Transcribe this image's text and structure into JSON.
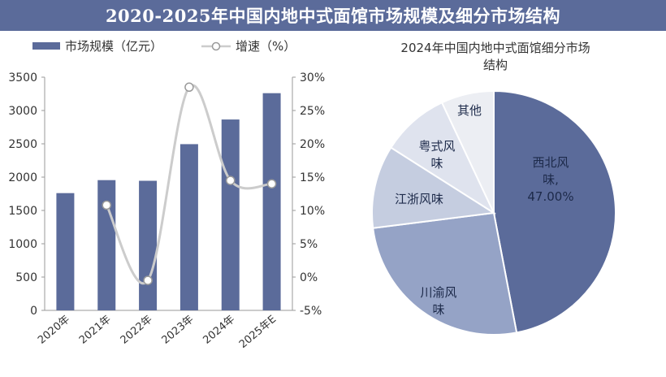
{
  "header": {
    "title": "2020-2025年中国内地中式面馆市场规模及细分市场结构"
  },
  "chart_data": [
    {
      "type": "bar",
      "title": "",
      "categories": [
        "2020年",
        "2021年",
        "2022年",
        "2023年",
        "2024年",
        "2025年E"
      ],
      "series": [
        {
          "name": "市场规模（亿元）",
          "type": "bar",
          "axis": "left",
          "values": [
            1760,
            1955,
            1945,
            2495,
            2865,
            3260
          ]
        },
        {
          "name": "增速（%）",
          "type": "line",
          "axis": "right",
          "values": [
            null,
            10.8,
            -0.5,
            28.5,
            14.5,
            14.0
          ]
        }
      ],
      "ylim": [
        0,
        3500
      ],
      "yticks": [
        "0",
        "500",
        "1000",
        "1500",
        "2000",
        "2500",
        "3000",
        "3500"
      ],
      "y2lim": [
        -5,
        30
      ],
      "y2ticks": [
        "-5%",
        "0%",
        "5%",
        "10%",
        "15%",
        "20%",
        "25%",
        "30%"
      ],
      "legend": "top-left",
      "grid": false,
      "colors": {
        "bar": "#5b6b9a",
        "line": "#cccccc",
        "marker_fill": "#ffffff",
        "marker_stroke": "#9a9a9a"
      }
    },
    {
      "type": "pie",
      "title": "2024年中国内地中式面馆细分市场结构",
      "slices": [
        {
          "label": "西北风味,",
          "value": 47.0,
          "value_label": "47.00%",
          "color": "#5b6b9a"
        },
        {
          "label": "川渝风味",
          "value": 26.0,
          "color": "#95a3c6"
        },
        {
          "label": "江浙风味",
          "value": 11.0,
          "color": "#c5cde0"
        },
        {
          "label": "粤式风味",
          "value": 9.0,
          "color": "#dfe3ee"
        },
        {
          "label": "其他",
          "value": 7.0,
          "color": "#eceef3"
        }
      ]
    }
  ]
}
